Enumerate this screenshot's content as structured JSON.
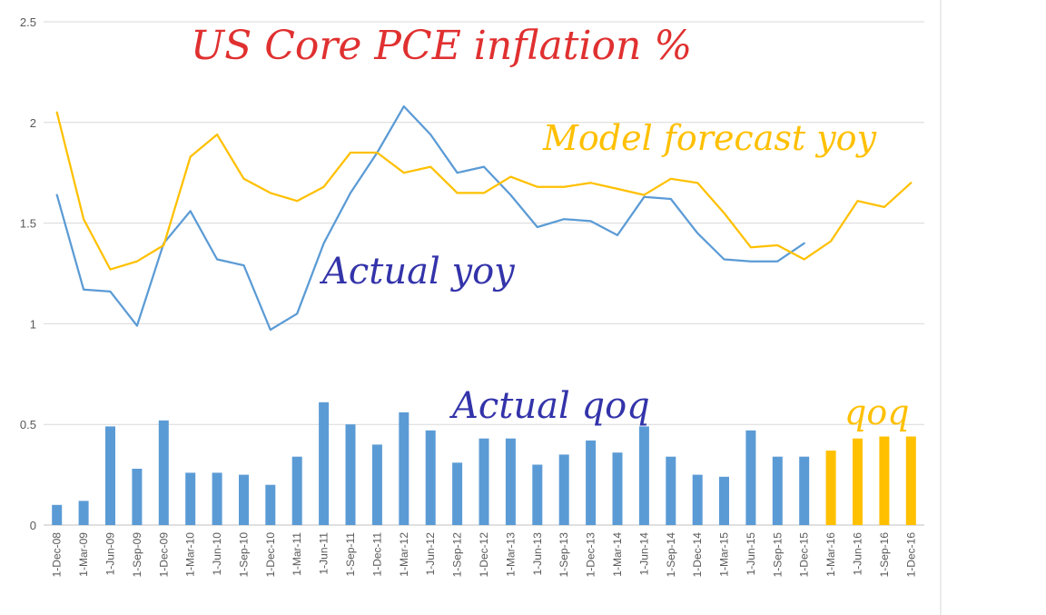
{
  "colors": {
    "actual": "#5B9BD5",
    "forecast": "#FFC000",
    "title": "#E03030",
    "annotation_blue": "#3333AA",
    "grid": "#D9D9D9",
    "axis": "#BFBFBF"
  },
  "annotations": {
    "title": "US Core PCE inflation %",
    "forecast_label": "Model forecast yoy",
    "actual_label": "Actual yoy",
    "actual_qoq_label": "Actual qoq",
    "qoq_label": "qoq"
  },
  "chart_data": {
    "type": "bar+line",
    "title": "US Core PCE inflation %",
    "ylim": [
      0,
      2.5
    ],
    "yticks": [
      "0",
      "0.5",
      "1",
      "1.5",
      "2",
      "2.5"
    ],
    "grid": true,
    "categories": [
      "1-Dec-08",
      "1-Mar-09",
      "1-Jun-09",
      "1-Sep-09",
      "1-Dec-09",
      "1-Mar-10",
      "1-Jun-10",
      "1-Sep-10",
      "1-Dec-10",
      "1-Mar-11",
      "1-Jun-11",
      "1-Sep-11",
      "1-Dec-11",
      "1-Mar-12",
      "1-Jun-12",
      "1-Sep-12",
      "1-Dec-12",
      "1-Mar-13",
      "1-Jun-13",
      "1-Sep-13",
      "1-Dec-13",
      "1-Mar-14",
      "1-Jun-14",
      "1-Sep-14",
      "1-Dec-14",
      "1-Mar-15",
      "1-Jun-15",
      "1-Sep-15",
      "1-Dec-15",
      "1-Mar-16",
      "1-Jun-16",
      "1-Sep-16",
      "1-Dec-16"
    ],
    "series": [
      {
        "name": "Actual qoq",
        "kind": "bar",
        "color": "#5B9BD5",
        "values": [
          0.1,
          0.12,
          0.49,
          0.28,
          0.52,
          0.26,
          0.26,
          0.25,
          0.2,
          0.34,
          0.61,
          0.5,
          0.4,
          0.56,
          0.47,
          0.31,
          0.43,
          0.43,
          0.3,
          0.35,
          0.42,
          0.36,
          0.49,
          0.34,
          0.25,
          0.24,
          0.47,
          0.34,
          0.34,
          null,
          null,
          null,
          null
        ]
      },
      {
        "name": "qoq",
        "kind": "bar",
        "color": "#FFC000",
        "values": [
          null,
          null,
          null,
          null,
          null,
          null,
          null,
          null,
          null,
          null,
          null,
          null,
          null,
          null,
          null,
          null,
          null,
          null,
          null,
          null,
          null,
          null,
          null,
          null,
          null,
          null,
          null,
          null,
          null,
          0.37,
          0.43,
          0.44,
          0.44
        ]
      },
      {
        "name": "Actual yoy",
        "kind": "line",
        "color": "#5B9BD5",
        "values": [
          1.64,
          1.17,
          1.16,
          0.99,
          1.4,
          1.56,
          1.32,
          1.29,
          0.97,
          1.05,
          1.4,
          1.65,
          1.85,
          2.08,
          1.94,
          1.75,
          1.78,
          1.64,
          1.48,
          1.52,
          1.51,
          1.44,
          1.63,
          1.62,
          1.45,
          1.32,
          1.31,
          1.31,
          1.4,
          null,
          null,
          null,
          null
        ]
      },
      {
        "name": "Model forecast yoy",
        "kind": "line",
        "color": "#FFC000",
        "values": [
          2.05,
          1.52,
          1.27,
          1.31,
          1.39,
          1.83,
          1.94,
          1.72,
          1.65,
          1.61,
          1.68,
          1.85,
          1.85,
          1.75,
          1.78,
          1.65,
          1.65,
          1.73,
          1.68,
          1.68,
          1.7,
          1.67,
          1.64,
          1.72,
          1.7,
          1.55,
          1.38,
          1.39,
          1.32,
          1.41,
          1.61,
          1.58,
          1.7
        ]
      }
    ]
  }
}
